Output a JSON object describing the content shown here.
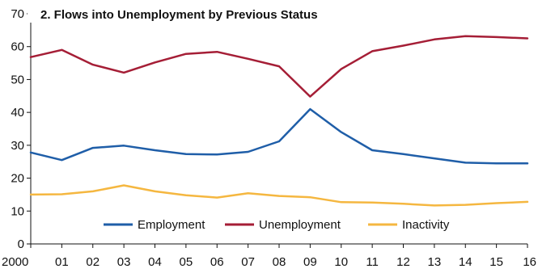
{
  "chart_data": {
    "type": "line",
    "title": "2. Flows into Unemployment by Previous Status",
    "x": [
      "2000",
      "01",
      "02",
      "03",
      "04",
      "05",
      "06",
      "07",
      "08",
      "09",
      "10",
      "11",
      "12",
      "13",
      "14",
      "15",
      "16"
    ],
    "ylim": [
      0,
      70
    ],
    "yticks": [
      0,
      10,
      20,
      30,
      40,
      50,
      60,
      70
    ],
    "grid": false,
    "legend_position": "bottom-center",
    "series": [
      {
        "name": "Employment",
        "color": "#1f5ea8",
        "values": [
          27.8,
          25.5,
          29.2,
          29.9,
          28.5,
          27.3,
          27.2,
          28.0,
          31.2,
          41.0,
          34.0,
          28.5,
          27.3,
          26.0,
          24.7,
          24.5,
          24.5
        ]
      },
      {
        "name": "Unemployment",
        "color": "#a51e36",
        "values": [
          56.8,
          59.0,
          54.5,
          52.1,
          55.2,
          57.8,
          58.4,
          56.3,
          54.0,
          44.8,
          53.2,
          58.6,
          60.3,
          62.2,
          63.2,
          62.9,
          62.5
        ]
      },
      {
        "name": "Inactivity",
        "color": "#f5b740",
        "values": [
          15.0,
          15.1,
          16.0,
          17.8,
          16.0,
          14.8,
          14.1,
          15.4,
          14.6,
          14.2,
          12.7,
          12.6,
          12.2,
          11.7,
          11.9,
          12.4,
          12.8
        ]
      }
    ]
  }
}
